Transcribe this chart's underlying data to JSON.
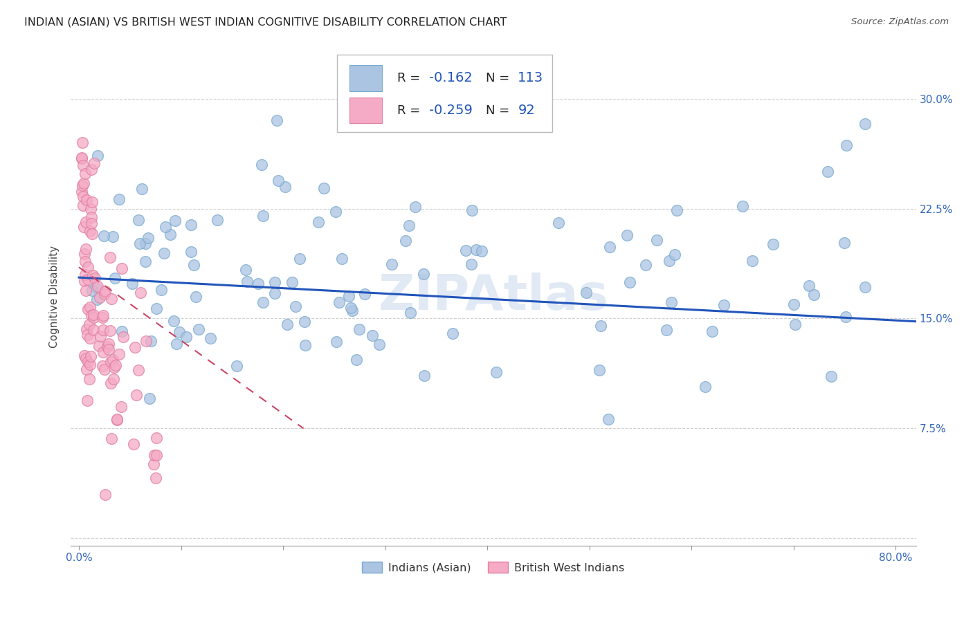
{
  "title": "INDIAN (ASIAN) VS BRITISH WEST INDIAN COGNITIVE DISABILITY CORRELATION CHART",
  "source": "Source: ZipAtlas.com",
  "ylabel": "Cognitive Disability",
  "xlim": [
    0.0,
    0.82
  ],
  "ylim": [
    0.0,
    0.335
  ],
  "xticks": [
    0.0,
    0.1,
    0.2,
    0.3,
    0.4,
    0.5,
    0.6,
    0.7,
    0.8
  ],
  "xticklabels": [
    "0.0%",
    "",
    "",
    "",
    "",
    "",
    "",
    "",
    "80.0%"
  ],
  "yticks": [
    0.0,
    0.075,
    0.15,
    0.225,
    0.3
  ],
  "yticklabels": [
    "",
    "7.5%",
    "15.0%",
    "22.5%",
    "30.0%"
  ],
  "blue_R": "-0.162",
  "blue_N": "113",
  "pink_R": "-0.259",
  "pink_N": "92",
  "blue_color": "#aac4e2",
  "pink_color": "#f5aac5",
  "blue_edge_color": "#7aaad0",
  "pink_edge_color": "#e080a0",
  "blue_line_color": "#2255bb",
  "pink_line_color": "#cc4466",
  "watermark": "ZIPAtlas",
  "legend_label_blue": "Indians (Asian)",
  "legend_label_pink": "British West Indians",
  "blue_trend_x": [
    0.0,
    0.82
  ],
  "blue_trend_y": [
    0.178,
    0.148
  ],
  "pink_trend_x": [
    0.0,
    0.22
  ],
  "pink_trend_y": [
    0.185,
    0.075
  ],
  "grid_color": "#cccccc",
  "tick_label_color": "#3366bb"
}
